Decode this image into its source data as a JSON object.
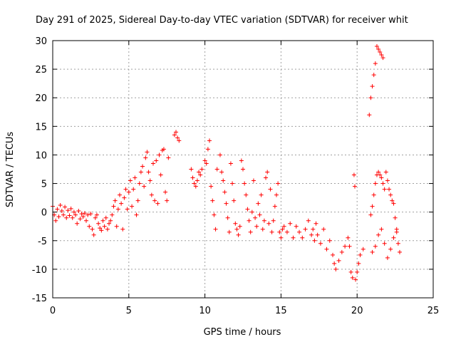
{
  "chart_data": {
    "type": "scatter",
    "title": "Day 291 of 2025, Sidereal Day-to-day VTEC variation (SDTVAR) for receiver whit",
    "xlabel": "GPS time / hours",
    "ylabel": "SDTVAR / TECUs",
    "xlim": [
      0,
      25
    ],
    "ylim": [
      -15,
      30
    ],
    "xticks": [
      0,
      5,
      10,
      15,
      20,
      25
    ],
    "yticks": [
      -15,
      -10,
      -5,
      0,
      5,
      10,
      15,
      20,
      25,
      30
    ],
    "grid": true,
    "marker": "+",
    "color": "#ff0000",
    "series": [
      {
        "name": "SDTVAR",
        "points": [
          [
            0.0,
            1.0
          ],
          [
            0.1,
            -0.5
          ],
          [
            0.2,
            -1.5
          ],
          [
            0.3,
            0.5
          ],
          [
            0.4,
            -0.8
          ],
          [
            0.5,
            1.2
          ],
          [
            0.6,
            0.2
          ],
          [
            0.7,
            -0.5
          ],
          [
            0.8,
            0.9
          ],
          [
            0.9,
            -1.0
          ],
          [
            1.0,
            0.3
          ],
          [
            1.1,
            -0.6
          ],
          [
            1.2,
            0.6
          ],
          [
            1.3,
            -1.0
          ],
          [
            1.4,
            0.0
          ],
          [
            1.5,
            -0.5
          ],
          [
            1.6,
            -2.0
          ],
          [
            1.7,
            0.2
          ],
          [
            1.8,
            -1.2
          ],
          [
            1.9,
            -0.3
          ],
          [
            2.0,
            -0.8
          ],
          [
            2.1,
            -0.2
          ],
          [
            2.2,
            -1.5
          ],
          [
            2.3,
            -0.5
          ],
          [
            2.4,
            -2.5
          ],
          [
            2.5,
            -0.3
          ],
          [
            2.6,
            -3.0
          ],
          [
            2.7,
            -4.0
          ],
          [
            2.8,
            -1.0
          ],
          [
            2.9,
            -0.5
          ],
          [
            3.0,
            -2.0
          ],
          [
            3.1,
            -2.8
          ],
          [
            3.2,
            -3.2
          ],
          [
            3.3,
            -1.5
          ],
          [
            3.4,
            -2.5
          ],
          [
            3.5,
            -1.0
          ],
          [
            3.6,
            -3.0
          ],
          [
            3.7,
            -2.0
          ],
          [
            3.8,
            -1.5
          ],
          [
            3.9,
            -0.5
          ],
          [
            4.0,
            1.0
          ],
          [
            4.1,
            2.0
          ],
          [
            4.2,
            -2.5
          ],
          [
            4.3,
            0.5
          ],
          [
            4.4,
            3.0
          ],
          [
            4.5,
            1.5
          ],
          [
            4.6,
            -3.0
          ],
          [
            4.7,
            2.5
          ],
          [
            4.8,
            4.0
          ],
          [
            4.9,
            0.5
          ],
          [
            5.0,
            3.5
          ],
          [
            5.1,
            5.5
          ],
          [
            5.2,
            1.0
          ],
          [
            5.3,
            4.0
          ],
          [
            5.4,
            6.0
          ],
          [
            5.5,
            -0.5
          ],
          [
            5.6,
            2.0
          ],
          [
            5.7,
            5.0
          ],
          [
            5.8,
            7.0
          ],
          [
            5.9,
            8.0
          ],
          [
            6.0,
            4.5
          ],
          [
            6.1,
            9.5
          ],
          [
            6.2,
            10.5
          ],
          [
            6.3,
            7.0
          ],
          [
            6.4,
            5.5
          ],
          [
            6.5,
            3.0
          ],
          [
            6.6,
            8.5
          ],
          [
            6.7,
            2.0
          ],
          [
            6.8,
            9.0
          ],
          [
            6.9,
            1.5
          ],
          [
            7.0,
            10.0
          ],
          [
            7.1,
            6.5
          ],
          [
            7.2,
            10.8
          ],
          [
            7.3,
            11.0
          ],
          [
            7.4,
            3.5
          ],
          [
            7.5,
            2.0
          ],
          [
            7.6,
            9.5
          ],
          [
            8.0,
            13.5
          ],
          [
            8.1,
            14.0
          ],
          [
            8.2,
            13.0
          ],
          [
            8.3,
            12.5
          ],
          [
            9.1,
            7.5
          ],
          [
            9.2,
            6.0
          ],
          [
            9.3,
            5.0
          ],
          [
            9.4,
            4.5
          ],
          [
            9.5,
            5.5
          ],
          [
            9.6,
            7.0
          ],
          [
            9.7,
            6.5
          ],
          [
            9.8,
            7.5
          ],
          [
            10.0,
            9.0
          ],
          [
            10.1,
            8.5
          ],
          [
            10.2,
            11.0
          ],
          [
            10.3,
            12.5
          ],
          [
            10.4,
            4.5
          ],
          [
            10.5,
            2.0
          ],
          [
            10.6,
            -0.5
          ],
          [
            10.7,
            -3.0
          ],
          [
            10.8,
            7.5
          ],
          [
            11.0,
            10.0
          ],
          [
            11.1,
            7.0
          ],
          [
            11.2,
            5.5
          ],
          [
            11.3,
            3.5
          ],
          [
            11.4,
            1.5
          ],
          [
            11.5,
            -1.0
          ],
          [
            11.6,
            -3.5
          ],
          [
            11.7,
            8.5
          ],
          [
            11.8,
            5.0
          ],
          [
            11.9,
            2.0
          ],
          [
            12.0,
            -2.0
          ],
          [
            12.1,
            -3.0
          ],
          [
            12.2,
            -4.0
          ],
          [
            12.3,
            -2.5
          ],
          [
            12.4,
            9.0
          ],
          [
            12.5,
            7.5
          ],
          [
            12.6,
            5.0
          ],
          [
            12.7,
            3.0
          ],
          [
            12.8,
            0.5
          ],
          [
            12.9,
            -1.5
          ],
          [
            13.0,
            -3.5
          ],
          [
            13.1,
            0.0
          ],
          [
            13.2,
            5.5
          ],
          [
            13.3,
            -1.0
          ],
          [
            13.4,
            -2.5
          ],
          [
            13.5,
            1.5
          ],
          [
            13.6,
            -0.5
          ],
          [
            13.7,
            3.0
          ],
          [
            13.8,
            -3.0
          ],
          [
            13.9,
            -1.5
          ],
          [
            14.0,
            6.0
          ],
          [
            14.1,
            7.0
          ],
          [
            14.2,
            -2.0
          ],
          [
            14.3,
            4.0
          ],
          [
            14.4,
            -3.5
          ],
          [
            14.5,
            -1.5
          ],
          [
            14.6,
            1.0
          ],
          [
            14.7,
            3.0
          ],
          [
            14.8,
            5.0
          ],
          [
            14.9,
            -3.5
          ],
          [
            15.0,
            -4.5
          ],
          [
            15.1,
            -3.0
          ],
          [
            15.2,
            -2.5
          ],
          [
            15.4,
            -3.5
          ],
          [
            15.6,
            -2.0
          ],
          [
            15.8,
            -4.5
          ],
          [
            16.0,
            -2.5
          ],
          [
            16.2,
            -3.5
          ],
          [
            16.4,
            -4.5
          ],
          [
            16.6,
            -3.0
          ],
          [
            16.8,
            -1.5
          ],
          [
            17.0,
            -4.0
          ],
          [
            17.1,
            -3.0
          ],
          [
            17.2,
            -5.0
          ],
          [
            17.3,
            -2.0
          ],
          [
            17.4,
            -4.0
          ],
          [
            17.6,
            -5.5
          ],
          [
            17.8,
            -3.0
          ],
          [
            18.0,
            -6.5
          ],
          [
            18.2,
            -5.0
          ],
          [
            18.4,
            -7.5
          ],
          [
            18.5,
            -9.0
          ],
          [
            18.6,
            -10.0
          ],
          [
            18.8,
            -8.5
          ],
          [
            19.0,
            -7.0
          ],
          [
            19.2,
            -6.0
          ],
          [
            19.4,
            -4.5
          ],
          [
            19.5,
            -6.0
          ],
          [
            19.6,
            -10.5
          ],
          [
            19.7,
            -11.5
          ],
          [
            19.8,
            6.5
          ],
          [
            19.85,
            4.5
          ],
          [
            19.9,
            -11.8
          ],
          [
            20.0,
            -10.5
          ],
          [
            20.1,
            -9.0
          ],
          [
            20.2,
            -7.5
          ],
          [
            20.4,
            -6.5
          ],
          [
            20.8,
            17.0
          ],
          [
            20.9,
            20.0
          ],
          [
            21.0,
            22.0
          ],
          [
            21.1,
            24.0
          ],
          [
            21.2,
            26.0
          ],
          [
            21.3,
            29.0
          ],
          [
            21.4,
            28.5
          ],
          [
            21.5,
            28.0
          ],
          [
            21.6,
            27.5
          ],
          [
            21.7,
            27.0
          ],
          [
            20.9,
            -0.5
          ],
          [
            21.0,
            1.0
          ],
          [
            21.1,
            3.0
          ],
          [
            21.2,
            5.0
          ],
          [
            21.3,
            6.5
          ],
          [
            21.4,
            7.0
          ],
          [
            21.5,
            6.5
          ],
          [
            21.6,
            6.0
          ],
          [
            21.7,
            5.0
          ],
          [
            21.8,
            4.0
          ],
          [
            21.9,
            7.0
          ],
          [
            22.0,
            5.5
          ],
          [
            22.1,
            4.0
          ],
          [
            22.2,
            3.0
          ],
          [
            22.3,
            2.0
          ],
          [
            22.4,
            1.5
          ],
          [
            22.5,
            -1.0
          ],
          [
            22.6,
            -3.0
          ],
          [
            22.7,
            -5.5
          ],
          [
            22.8,
            -7.0
          ],
          [
            21.0,
            -7.0
          ],
          [
            21.2,
            -6.0
          ],
          [
            21.4,
            -4.0
          ],
          [
            21.6,
            -3.0
          ],
          [
            21.8,
            -5.5
          ],
          [
            22.0,
            -8.0
          ],
          [
            22.2,
            -6.5
          ],
          [
            22.4,
            -4.5
          ],
          [
            22.6,
            -3.5
          ]
        ]
      }
    ]
  }
}
